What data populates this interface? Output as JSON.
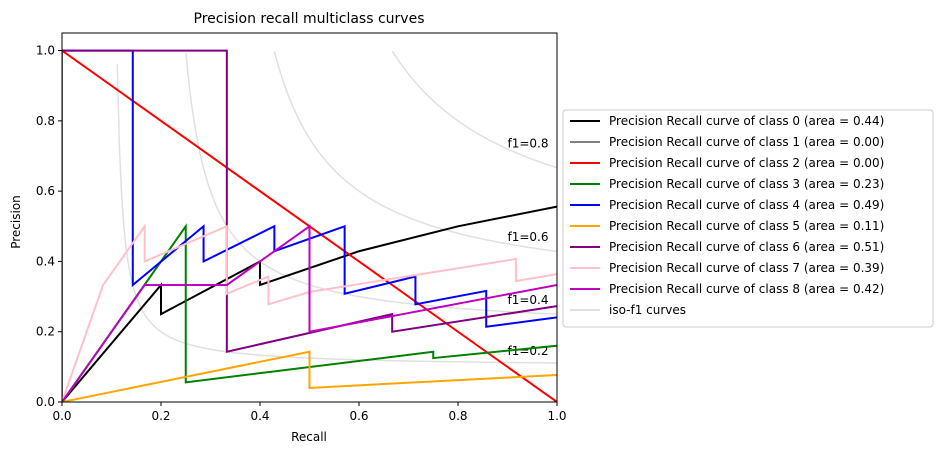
{
  "chart_data": {
    "type": "line",
    "title": "Precision recall multiclass curves",
    "xlabel": "Recall",
    "ylabel": "Precision",
    "xlim": [
      0.0,
      1.0
    ],
    "ylim": [
      0.0,
      1.05
    ],
    "x_ticks": [
      "0.0",
      "0.2",
      "0.4",
      "0.6",
      "0.8",
      "1.0"
    ],
    "y_ticks": [
      "0.0",
      "0.2",
      "0.4",
      "0.6",
      "0.8",
      "1.0"
    ],
    "grid": false,
    "legend_position": "outside-right",
    "iso_f1": {
      "label": "iso-f1 curves",
      "color": "#e0e0e0",
      "levels": [
        {
          "f1": 0.2,
          "label": "f1=0.2",
          "label_y": 0.145
        },
        {
          "f1": 0.4,
          "label": "f1=0.4",
          "label_y": 0.29
        },
        {
          "f1": 0.6,
          "label": "f1=0.6",
          "label_y": 0.47
        },
        {
          "f1": 0.8,
          "label": "f1=0.8",
          "label_y": 0.735
        }
      ]
    },
    "series": [
      {
        "name": "Precision Recall curve of class 0 (area = 0.44)",
        "color": "#000000",
        "points": [
          [
            0,
            0
          ],
          [
            0.2,
            0.333
          ],
          [
            0.2,
            0.25
          ],
          [
            0.4,
            0.4
          ],
          [
            0.4,
            0.333
          ],
          [
            0.6,
            0.429
          ],
          [
            0.8,
            0.5
          ],
          [
            1.0,
            0.556
          ]
        ]
      },
      {
        "name": "Precision Recall curve of class 1 (area = 0.00)",
        "color": "#808080",
        "points": [
          [
            0,
            1.0
          ],
          [
            0,
            0
          ]
        ]
      },
      {
        "name": "Precision Recall curve of class 2 (area = 0.00)",
        "color": "#ff0000",
        "points": [
          [
            0,
            1.0
          ],
          [
            1.0,
            0
          ]
        ]
      },
      {
        "name": "Precision Recall curve of class 3 (area = 0.23)",
        "color": "#008000",
        "points": [
          [
            0,
            0
          ],
          [
            0.25,
            0.5
          ],
          [
            0.25,
            0.056
          ],
          [
            0.75,
            0.143
          ],
          [
            0.75,
            0.125
          ],
          [
            1.0,
            0.16
          ]
        ]
      },
      {
        "name": "Precision Recall curve of class 4 (area = 0.49)",
        "color": "#0000ff",
        "points": [
          [
            0,
            1.0
          ],
          [
            0.143,
            1.0
          ],
          [
            0.143,
            0.333
          ],
          [
            0.286,
            0.5
          ],
          [
            0.286,
            0.4
          ],
          [
            0.429,
            0.5
          ],
          [
            0.429,
            0.429
          ],
          [
            0.571,
            0.5
          ],
          [
            0.571,
            0.308
          ],
          [
            0.714,
            0.357
          ],
          [
            0.714,
            0.278
          ],
          [
            0.857,
            0.316
          ],
          [
            0.857,
            0.214
          ],
          [
            1.0,
            0.241
          ]
        ]
      },
      {
        "name": "Precision Recall curve of class 5 (area = 0.11)",
        "color": "#ffa500",
        "points": [
          [
            0,
            0
          ],
          [
            0.5,
            0.143
          ],
          [
            0.5,
            0.04
          ],
          [
            1.0,
            0.077
          ]
        ]
      },
      {
        "name": "Precision Recall curve of class 6 (area = 0.51)",
        "color": "#800080",
        "points": [
          [
            0,
            1.0
          ],
          [
            0.333,
            1.0
          ],
          [
            0.333,
            0.143
          ],
          [
            0.667,
            0.25
          ],
          [
            0.667,
            0.2
          ],
          [
            1.0,
            0.273
          ]
        ]
      },
      {
        "name": "Precision Recall curve of class 7 (area = 0.39)",
        "color": "#ffc0cb",
        "points": [
          [
            0,
            0
          ],
          [
            0.083,
            0.333
          ],
          [
            0.167,
            0.5
          ],
          [
            0.167,
            0.4
          ],
          [
            0.333,
            0.5
          ],
          [
            0.333,
            0.308
          ],
          [
            0.417,
            0.357
          ],
          [
            0.417,
            0.278
          ],
          [
            0.5,
            0.313
          ],
          [
            0.917,
            0.407
          ],
          [
            0.917,
            0.344
          ],
          [
            1.0,
            0.364
          ]
        ]
      },
      {
        "name": "Precision Recall curve of class 8 (area = 0.42)",
        "color": "#c000c0",
        "points": [
          [
            0,
            0
          ],
          [
            0.167,
            0.333
          ],
          [
            0.333,
            0.333
          ],
          [
            0.5,
            0.5
          ],
          [
            0.5,
            0.2
          ],
          [
            1.0,
            0.333
          ]
        ]
      }
    ]
  }
}
